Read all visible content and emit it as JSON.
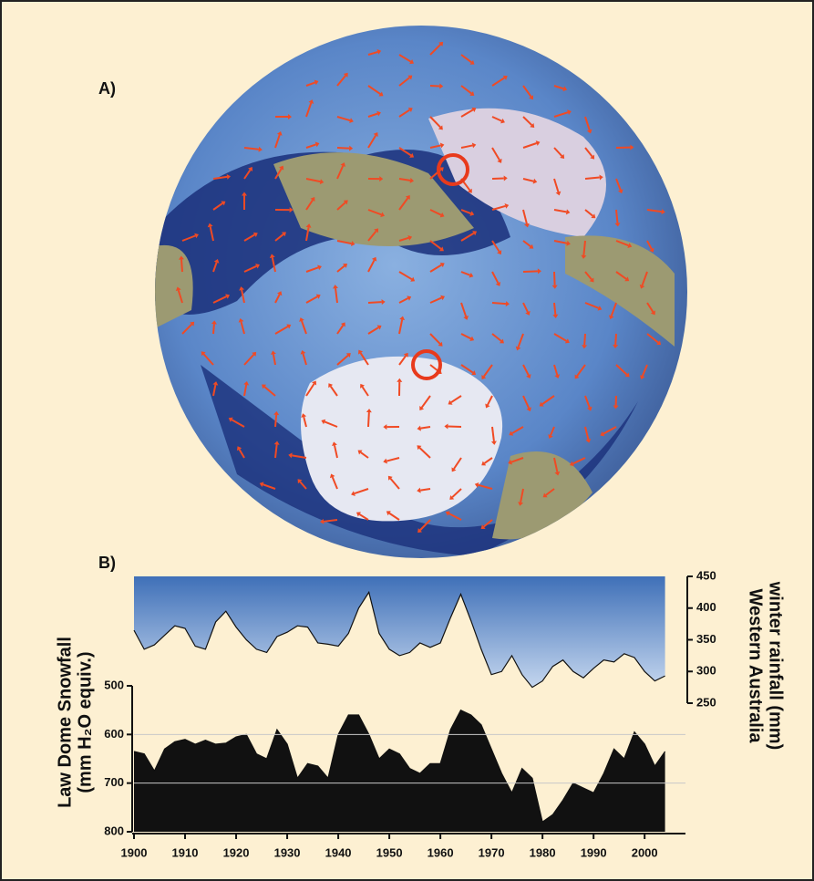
{
  "panels": {
    "a": "A)",
    "b": "B)"
  },
  "chart_data": {
    "type": "area",
    "x": [
      1900,
      1902,
      1904,
      1906,
      1908,
      1910,
      1912,
      1914,
      1916,
      1918,
      1920,
      1922,
      1924,
      1926,
      1928,
      1930,
      1932,
      1934,
      1936,
      1938,
      1940,
      1942,
      1944,
      1946,
      1948,
      1950,
      1952,
      1954,
      1956,
      1958,
      1960,
      1962,
      1964,
      1966,
      1968,
      1970,
      1972,
      1974,
      1976,
      1978,
      1980,
      1982,
      1984,
      1986,
      1988,
      1990,
      1992,
      1994,
      1996,
      1998,
      2000,
      2002,
      2004
    ],
    "xlim": [
      1900,
      2008
    ],
    "xticks": [
      1900,
      1910,
      1920,
      1930,
      1940,
      1950,
      1960,
      1970,
      1980,
      1990,
      2000
    ],
    "ylim": [
      800,
      500
    ],
    "yticks": [
      500,
      600,
      700,
      800
    ],
    "y_label": [
      "Law Dome Snowfall",
      "(mm H₂O equiv.)"
    ],
    "y2lim": [
      250,
      450
    ],
    "y2ticks": [
      250,
      300,
      350,
      400,
      450
    ],
    "y2_label": [
      "Western Australia",
      "winter rainfall (mm)"
    ],
    "grid": true,
    "series": [
      {
        "color": "#4a7fc4",
        "axis": "y2",
        "values": [
          365,
          335,
          342,
          357,
          372,
          368,
          340,
          335,
          378,
          395,
          370,
          350,
          335,
          330,
          355,
          362,
          372,
          370,
          345,
          343,
          340,
          360,
          400,
          425,
          360,
          335,
          325,
          330,
          345,
          338,
          345,
          385,
          422,
          380,
          335,
          295,
          300,
          325,
          295,
          275,
          285,
          308,
          318,
          300,
          290,
          305,
          318,
          315,
          328,
          322,
          300,
          285,
          293
        ]
      },
      {
        "color": "#111111",
        "axis": "y",
        "values": [
          635,
          640,
          675,
          630,
          615,
          610,
          620,
          612,
          620,
          618,
          605,
          600,
          640,
          650,
          590,
          620,
          690,
          660,
          665,
          690,
          600,
          560,
          560,
          600,
          650,
          630,
          640,
          670,
          680,
          660,
          660,
          590,
          550,
          560,
          580,
          630,
          680,
          720,
          670,
          690,
          780,
          765,
          735,
          700,
          710,
          720,
          680,
          630,
          650,
          595,
          620,
          665,
          635
        ]
      }
    ]
  }
}
